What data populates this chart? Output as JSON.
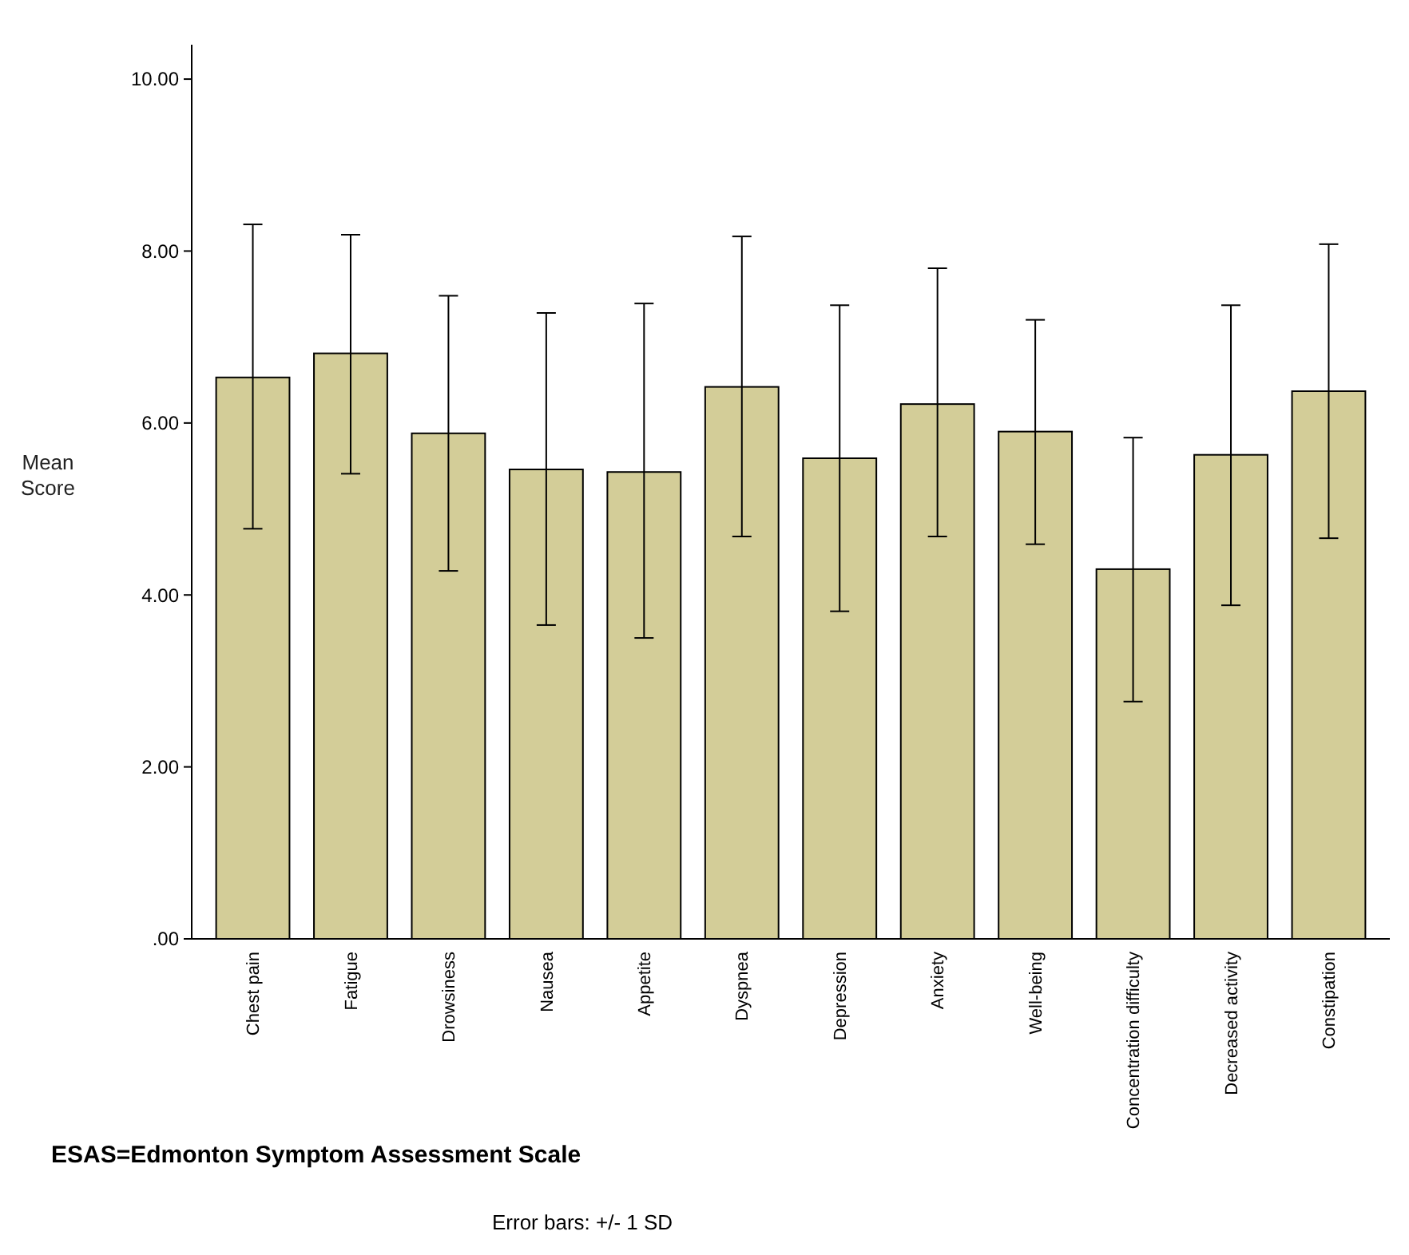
{
  "chart_data": {
    "type": "bar",
    "ylabel": "Mean Score",
    "categories": [
      "Chest pain",
      "Fatigue",
      "Drowsiness",
      "Nausea",
      "Appetite",
      "Dyspnea",
      "Depression",
      "Anxiety",
      "Well-being",
      "Concentration difficulty",
      "Decreased activity",
      "Constipation"
    ],
    "values": [
      6.53,
      6.81,
      5.88,
      5.46,
      5.43,
      6.42,
      5.59,
      6.22,
      5.9,
      4.3,
      5.63,
      6.37
    ],
    "errors": [
      [
        4.77,
        8.31
      ],
      [
        5.41,
        8.19
      ],
      [
        4.28,
        7.48
      ],
      [
        3.65,
        7.28
      ],
      [
        3.5,
        7.39
      ],
      [
        4.68,
        8.17
      ],
      [
        3.81,
        7.37
      ],
      [
        4.68,
        7.8
      ],
      [
        4.59,
        7.2
      ],
      [
        2.76,
        5.83
      ],
      [
        3.88,
        7.37
      ],
      [
        4.66,
        8.08
      ]
    ],
    "color": "#d3cd98",
    "ylim": [
      0,
      10.4
    ],
    "yticks": [
      {
        "value": 0,
        "label": ".00"
      },
      {
        "value": 2,
        "label": "2.00"
      },
      {
        "value": 4,
        "label": "4.00"
      },
      {
        "value": 6,
        "label": "6.00"
      },
      {
        "value": 8,
        "label": "8.00"
      },
      {
        "value": 10,
        "label": "10.00"
      }
    ],
    "grid": false,
    "annotations": [
      "ESAS=Edmonton Symptom Assessment Scale",
      "Error bars: +/- 1 SD"
    ]
  }
}
